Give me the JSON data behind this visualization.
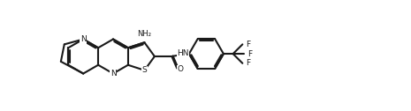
{
  "background_color": "#ffffff",
  "line_color": "#1a1a1a",
  "line_width": 1.5,
  "figsize": [
    4.65,
    1.26
  ],
  "dpi": 100,
  "bl": 0.195,
  "labels": {
    "N1": "N",
    "N2": "N",
    "S": "S",
    "NH2": "NH₂",
    "O": "O",
    "HN": "HN",
    "F1": "F",
    "F2": "F",
    "F3": "F"
  },
  "font_size": 6.5
}
